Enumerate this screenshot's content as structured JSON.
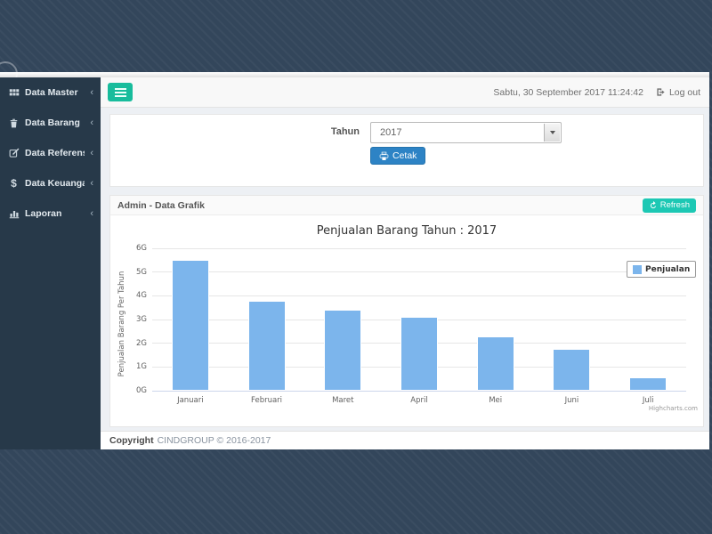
{
  "sidebar": {
    "items": [
      {
        "label": "Data Master",
        "icon": "grid-icon"
      },
      {
        "label": "Data Barang",
        "icon": "trash-icon"
      },
      {
        "label": "Data Referensi",
        "icon": "edit-icon"
      },
      {
        "label": "Data Keuangan",
        "icon": "dollar-icon"
      },
      {
        "label": "Laporan",
        "icon": "bar-chart-icon"
      }
    ],
    "chevron": "‹"
  },
  "topnav": {
    "datetime": "Sabtu, 30 September 2017 11:24:42",
    "logout_label": "Log out"
  },
  "filter_form": {
    "year_label": "Tahun",
    "year_value": "2017",
    "print_label": "Cetak"
  },
  "grafik_panel": {
    "title": "Admin - Data Grafik",
    "refresh_label": "Refresh"
  },
  "footer": {
    "copyright_bold": "Copyright",
    "copyright_rest": "CINDGROUP © 2016-2017"
  },
  "colors": {
    "accent_green": "#18bc9c",
    "primary_blue": "#2d83c5",
    "refresh_teal": "#1dc8b4",
    "bar_blue": "#7cb5ec",
    "sidebar_bg": "#273949",
    "slide_bg": "#33465b"
  },
  "chart_data": {
    "type": "bar",
    "title": "Penjualan Barang Tahun : 2017",
    "categories": [
      "Januari",
      "Februari",
      "Maret",
      "April",
      "Mei",
      "Juni",
      "Juli"
    ],
    "series": [
      {
        "name": "Penjualan",
        "values": [
          5.5,
          3.8,
          3.4,
          3.1,
          2.3,
          1.75,
          0.55
        ]
      }
    ],
    "xlabel": "",
    "ylabel": "Penjualan Barang Per Tahun",
    "ylim": [
      0,
      6
    ],
    "ytick_step": 1,
    "ytick_suffix": "G",
    "grid": true,
    "legend_position": "right",
    "bar_color": "#7cb5ec",
    "credits": "Highcharts.com"
  }
}
